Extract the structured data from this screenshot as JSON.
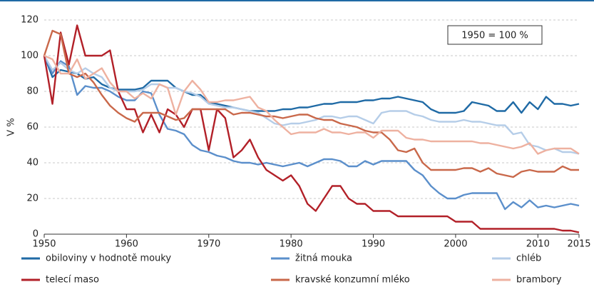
{
  "chart_data": {
    "type": "line",
    "y_label": "V %",
    "annotation": "1950 = 100 %",
    "x": [
      1950,
      1951,
      1952,
      1953,
      1954,
      1955,
      1956,
      1957,
      1958,
      1959,
      1960,
      1961,
      1962,
      1963,
      1964,
      1965,
      1966,
      1967,
      1968,
      1969,
      1970,
      1971,
      1972,
      1973,
      1974,
      1975,
      1976,
      1977,
      1978,
      1979,
      1980,
      1981,
      1982,
      1983,
      1984,
      1985,
      1986,
      1987,
      1988,
      1989,
      1990,
      1991,
      1992,
      1993,
      1994,
      1995,
      1996,
      1997,
      1998,
      1999,
      2000,
      2001,
      2002,
      2003,
      2004,
      2005,
      2006,
      2007,
      2008,
      2009,
      2010,
      2011,
      2012,
      2013,
      2014,
      2015
    ],
    "xlim": [
      1950,
      2015
    ],
    "xticks": [
      1950,
      1960,
      1970,
      1980,
      1990,
      2000,
      2010,
      2015
    ],
    "ylim": [
      0,
      120
    ],
    "yticks": [
      0,
      20,
      40,
      60,
      80,
      100,
      120
    ],
    "grid": true,
    "legend": "bottom",
    "series": [
      {
        "name": "obiloviny v hodnotě mouky",
        "color": "#1f6aa5",
        "values": [
          100,
          88,
          92,
          91,
          90,
          87,
          88,
          84,
          82,
          81,
          81,
          81,
          82,
          86,
          86,
          86,
          82,
          80,
          78,
          78,
          74,
          73,
          72,
          71,
          70,
          69,
          69,
          69,
          69,
          70,
          70,
          71,
          71,
          72,
          73,
          73,
          74,
          74,
          74,
          75,
          75,
          76,
          76,
          77,
          76,
          75,
          74,
          70,
          68,
          68,
          68,
          69,
          74,
          73,
          72,
          69,
          69,
          74,
          68,
          74,
          70,
          77,
          73,
          73,
          72,
          73
        ]
      },
      {
        "name": "žitná mouka",
        "color": "#5b8fcb",
        "values": [
          100,
          90,
          97,
          94,
          78,
          83,
          82,
          82,
          80,
          77,
          75,
          75,
          80,
          79,
          67,
          59,
          58,
          56,
          50,
          47,
          46,
          44,
          43,
          41,
          40,
          40,
          39,
          40,
          39,
          38,
          39,
          40,
          38,
          40,
          42,
          42,
          41,
          38,
          38,
          41,
          39,
          41,
          41,
          41,
          41,
          36,
          33,
          27,
          23,
          20,
          20,
          22,
          23,
          23,
          23,
          23,
          14,
          18,
          15,
          19,
          15,
          16,
          15,
          16,
          17,
          16
        ]
      },
      {
        "name": "chléb",
        "color": "#b5cde8",
        "values": [
          100,
          92,
          96,
          92,
          90,
          93,
          90,
          88,
          82,
          80,
          80,
          80,
          81,
          84,
          84,
          82,
          82,
          80,
          79,
          77,
          73,
          72,
          71,
          71,
          70,
          69,
          68,
          65,
          62,
          61,
          62,
          62,
          63,
          64,
          66,
          66,
          65,
          66,
          66,
          64,
          62,
          68,
          69,
          69,
          69,
          67,
          66,
          64,
          63,
          63,
          63,
          64,
          63,
          63,
          62,
          61,
          61,
          56,
          57,
          50,
          49,
          47,
          48,
          46,
          46,
          45
        ]
      },
      {
        "name": "telecí maso",
        "color": "#b22028",
        "values": [
          100,
          73,
          113,
          95,
          117,
          100,
          100,
          100,
          103,
          80,
          70,
          70,
          57,
          67,
          57,
          70,
          67,
          60,
          70,
          70,
          47,
          70,
          65,
          43,
          47,
          53,
          43,
          36,
          33,
          30,
          33,
          27,
          17,
          13,
          20,
          27,
          27,
          20,
          17,
          17,
          13,
          13,
          13,
          10,
          10,
          10,
          10,
          10,
          10,
          10,
          7,
          7,
          7,
          3,
          3,
          3,
          3,
          3,
          3,
          3,
          3,
          3,
          3,
          2,
          2,
          1
        ]
      },
      {
        "name": "kravské konzumní mléko",
        "color": "#c9684a",
        "values": [
          100,
          114,
          112,
          90,
          88,
          90,
          85,
          78,
          72,
          68,
          65,
          63,
          68,
          68,
          68,
          66,
          64,
          65,
          70,
          70,
          70,
          70,
          70,
          67,
          68,
          68,
          67,
          66,
          66,
          65,
          66,
          67,
          67,
          65,
          64,
          64,
          62,
          61,
          60,
          58,
          57,
          57,
          53,
          47,
          46,
          48,
          40,
          36,
          36,
          36,
          36,
          37,
          37,
          35,
          37,
          34,
          33,
          32,
          35,
          36,
          35,
          35,
          35,
          38,
          36,
          36
        ]
      },
      {
        "name": "brambory",
        "color": "#eeb1a0",
        "values": [
          100,
          98,
          90,
          90,
          98,
          87,
          90,
          93,
          85,
          80,
          80,
          76,
          79,
          76,
          84,
          82,
          67,
          80,
          86,
          81,
          74,
          74,
          75,
          75,
          76,
          77,
          71,
          69,
          64,
          60,
          56,
          57,
          57,
          57,
          59,
          57,
          57,
          56,
          57,
          57,
          54,
          58,
          58,
          58,
          54,
          53,
          53,
          52,
          52,
          52,
          52,
          52,
          52,
          51,
          51,
          50,
          49,
          48,
          49,
          51,
          45,
          47,
          48,
          48,
          48,
          45
        ]
      }
    ]
  }
}
